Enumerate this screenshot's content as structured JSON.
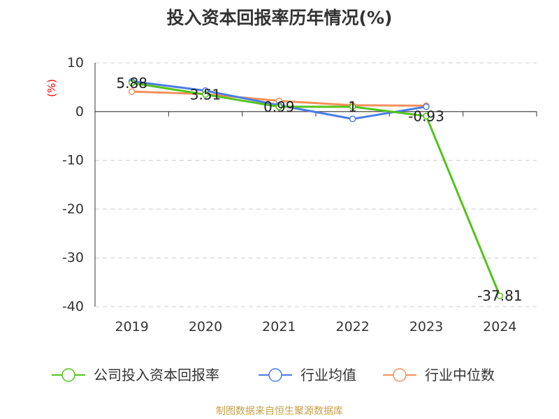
{
  "title": "投入资本回报率历年情况(%)",
  "source": "制图数据来自恒生聚源数据库",
  "colors": {
    "company": "#52c41a",
    "industry_avg": "#4b7be5",
    "industry_median": "#f5905a",
    "axis": "#333333",
    "grid": "#cccccc",
    "unit": "#ff0000",
    "text": "#333333"
  },
  "chart_data": {
    "type": "line",
    "title": "投入资本回报率历年情况(%)",
    "ylabel": "(%)",
    "xlabel": "",
    "categories": [
      "2019",
      "2020",
      "2021",
      "2022",
      "2023",
      "2024"
    ],
    "ylim": [
      -40,
      10
    ],
    "yticks": [
      10,
      0,
      -10,
      -20,
      -30,
      -40
    ],
    "grid": true,
    "legend_position": "bottom",
    "series": [
      {
        "name": "公司投入资本回报率",
        "values": [
          5.88,
          3.51,
          0.99,
          1,
          -0.93,
          -37.81
        ],
        "labels": [
          "5.88",
          "3.51",
          "0.99",
          "1",
          "-0.93",
          "-37.81"
        ],
        "color": "#52c41a"
      },
      {
        "name": "行业均值",
        "values": [
          6.2,
          4.3,
          1.3,
          -1.5,
          1.0,
          null
        ],
        "color": "#4b7be5"
      },
      {
        "name": "行业中位数",
        "values": [
          4.1,
          3.6,
          2.2,
          1.3,
          1.2,
          null
        ],
        "color": "#f5905a"
      }
    ]
  }
}
